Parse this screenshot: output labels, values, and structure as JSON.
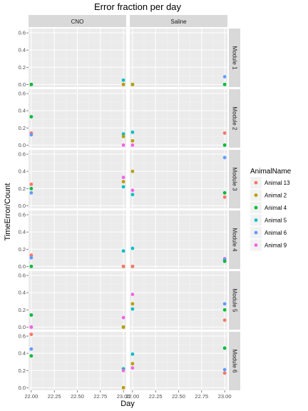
{
  "chart_data": {
    "type": "scatter",
    "title": "Error fraction per day",
    "xlabel": "Day",
    "ylabel": "TimeError/Count",
    "xlim": [
      21.97,
      23.03
    ],
    "ylim": [
      -0.03,
      0.65
    ],
    "x_ticks": [
      22.0,
      22.25,
      22.5,
      22.75,
      23.0
    ],
    "x_tick_labels": [
      "22.00",
      "22.25",
      "22.50",
      "22.75",
      "23.00"
    ],
    "y_ticks": [
      0.0,
      0.2,
      0.4,
      0.6
    ],
    "y_tick_labels": [
      "0.0",
      "0.2",
      "0.4",
      "0.6"
    ],
    "grid": true,
    "legend_position": "right",
    "legend_title": "AnimalName",
    "series": [
      {
        "name": "Animal 13",
        "color": "#F8766D"
      },
      {
        "name": "Animal 2",
        "color": "#B79F00"
      },
      {
        "name": "Animal 4",
        "color": "#00BA38"
      },
      {
        "name": "Animal 5",
        "color": "#00BFC4"
      },
      {
        "name": "Animal 6",
        "color": "#619CFF"
      },
      {
        "name": "Animal 9",
        "color": "#F564E3"
      }
    ],
    "col_facets": [
      "CNO",
      "Saline"
    ],
    "row_facets": [
      "Module 1",
      "Module 2",
      "Module 3",
      "Module 4",
      "Module 5",
      "Module 6"
    ],
    "points": [
      {
        "row": 0,
        "col": 0,
        "x": 22.0,
        "y": 0.0,
        "s": 0
      },
      {
        "row": 0,
        "col": 0,
        "x": 22.0,
        "y": 0.0,
        "s": 2
      },
      {
        "row": 0,
        "col": 0,
        "x": 23.0,
        "y": 0.05,
        "s": 3
      },
      {
        "row": 0,
        "col": 0,
        "x": 23.0,
        "y": 0.0,
        "s": 0
      },
      {
        "row": 0,
        "col": 0,
        "x": 23.0,
        "y": 0.0,
        "s": 1
      },
      {
        "row": 0,
        "col": 1,
        "x": 22.0,
        "y": 0.0,
        "s": 2
      },
      {
        "row": 0,
        "col": 1,
        "x": 22.0,
        "y": 0.0,
        "s": 1
      },
      {
        "row": 0,
        "col": 1,
        "x": 23.0,
        "y": 0.09,
        "s": 4
      },
      {
        "row": 0,
        "col": 1,
        "x": 23.0,
        "y": 0.0,
        "s": 2
      },
      {
        "row": 1,
        "col": 0,
        "x": 22.0,
        "y": 0.33,
        "s": 2
      },
      {
        "row": 1,
        "col": 0,
        "x": 22.0,
        "y": 0.14,
        "s": 0
      },
      {
        "row": 1,
        "col": 0,
        "x": 22.0,
        "y": 0.12,
        "s": 4
      },
      {
        "row": 1,
        "col": 0,
        "x": 23.0,
        "y": 0.13,
        "s": 3
      },
      {
        "row": 1,
        "col": 0,
        "x": 23.0,
        "y": 0.1,
        "s": 1
      },
      {
        "row": 1,
        "col": 0,
        "x": 23.0,
        "y": 0.0,
        "s": 5
      },
      {
        "row": 1,
        "col": 1,
        "x": 22.0,
        "y": 0.15,
        "s": 3
      },
      {
        "row": 1,
        "col": 1,
        "x": 22.0,
        "y": 0.05,
        "s": 1
      },
      {
        "row": 1,
        "col": 1,
        "x": 22.0,
        "y": 0.0,
        "s": 5
      },
      {
        "row": 1,
        "col": 1,
        "x": 23.0,
        "y": 0.14,
        "s": 0
      },
      {
        "row": 1,
        "col": 1,
        "x": 23.0,
        "y": 0.0,
        "s": 2
      },
      {
        "row": 2,
        "col": 0,
        "x": 22.0,
        "y": 0.25,
        "s": 0
      },
      {
        "row": 2,
        "col": 0,
        "x": 22.0,
        "y": 0.2,
        "s": 2
      },
      {
        "row": 2,
        "col": 0,
        "x": 22.0,
        "y": 0.15,
        "s": 4
      },
      {
        "row": 2,
        "col": 0,
        "x": 23.0,
        "y": 0.33,
        "s": 5
      },
      {
        "row": 2,
        "col": 0,
        "x": 23.0,
        "y": 0.28,
        "s": 1
      },
      {
        "row": 2,
        "col": 0,
        "x": 23.0,
        "y": 0.22,
        "s": 3
      },
      {
        "row": 2,
        "col": 1,
        "x": 22.0,
        "y": 0.4,
        "s": 1
      },
      {
        "row": 2,
        "col": 1,
        "x": 22.0,
        "y": 0.18,
        "s": 5
      },
      {
        "row": 2,
        "col": 1,
        "x": 22.0,
        "y": 0.13,
        "s": 3
      },
      {
        "row": 2,
        "col": 1,
        "x": 23.0,
        "y": 0.56,
        "s": 4
      },
      {
        "row": 2,
        "col": 1,
        "x": 23.0,
        "y": 0.15,
        "s": 2
      },
      {
        "row": 2,
        "col": 1,
        "x": 23.0,
        "y": 0.1,
        "s": 0
      },
      {
        "row": 3,
        "col": 0,
        "x": 22.0,
        "y": 0.13,
        "s": 0
      },
      {
        "row": 3,
        "col": 0,
        "x": 22.0,
        "y": 0.1,
        "s": 4
      },
      {
        "row": 3,
        "col": 0,
        "x": 22.0,
        "y": 0.0,
        "s": 2
      },
      {
        "row": 3,
        "col": 0,
        "x": 23.0,
        "y": 0.18,
        "s": 3
      },
      {
        "row": 3,
        "col": 0,
        "x": 23.0,
        "y": 0.0,
        "s": 1
      },
      {
        "row": 3,
        "col": 0,
        "x": 23.0,
        "y": 0.0,
        "s": 0
      },
      {
        "row": 3,
        "col": 1,
        "x": 22.0,
        "y": 0.21,
        "s": 3
      },
      {
        "row": 3,
        "col": 1,
        "x": 22.0,
        "y": 0.0,
        "s": 1
      },
      {
        "row": 3,
        "col": 1,
        "x": 22.0,
        "y": 0.0,
        "s": 0
      },
      {
        "row": 3,
        "col": 1,
        "x": 23.0,
        "y": 0.09,
        "s": 5
      },
      {
        "row": 3,
        "col": 1,
        "x": 23.0,
        "y": 0.08,
        "s": 4
      },
      {
        "row": 3,
        "col": 1,
        "x": 23.0,
        "y": 0.06,
        "s": 2
      },
      {
        "row": 4,
        "col": 0,
        "x": 22.0,
        "y": 0.14,
        "s": 2
      },
      {
        "row": 4,
        "col": 0,
        "x": 22.0,
        "y": 0.0,
        "s": 4
      },
      {
        "row": 4,
        "col": 0,
        "x": 22.0,
        "y": 0.0,
        "s": 5
      },
      {
        "row": 4,
        "col": 0,
        "x": 23.0,
        "y": 0.11,
        "s": 5
      },
      {
        "row": 4,
        "col": 0,
        "x": 23.0,
        "y": 0.0,
        "s": 2
      },
      {
        "row": 4,
        "col": 0,
        "x": 23.0,
        "y": 0.0,
        "s": 1
      },
      {
        "row": 4,
        "col": 1,
        "x": 22.0,
        "y": 0.38,
        "s": 5
      },
      {
        "row": 4,
        "col": 1,
        "x": 22.0,
        "y": 0.27,
        "s": 1
      },
      {
        "row": 4,
        "col": 1,
        "x": 22.0,
        "y": 0.21,
        "s": 3
      },
      {
        "row": 4,
        "col": 1,
        "x": 23.0,
        "y": 0.27,
        "s": 4
      },
      {
        "row": 4,
        "col": 1,
        "x": 23.0,
        "y": 0.2,
        "s": 2
      },
      {
        "row": 4,
        "col": 1,
        "x": 23.0,
        "y": 0.08,
        "s": 0
      },
      {
        "row": 5,
        "col": 0,
        "x": 22.0,
        "y": 0.62,
        "s": 0
      },
      {
        "row": 5,
        "col": 0,
        "x": 22.0,
        "y": 0.45,
        "s": 4
      },
      {
        "row": 5,
        "col": 0,
        "x": 22.0,
        "y": 0.37,
        "s": 2
      },
      {
        "row": 5,
        "col": 0,
        "x": 23.0,
        "y": 0.22,
        "s": 3
      },
      {
        "row": 5,
        "col": 0,
        "x": 23.0,
        "y": 0.2,
        "s": 5
      },
      {
        "row": 5,
        "col": 0,
        "x": 23.0,
        "y": 0.0,
        "s": 1
      },
      {
        "row": 5,
        "col": 1,
        "x": 22.0,
        "y": 0.39,
        "s": 3
      },
      {
        "row": 5,
        "col": 1,
        "x": 22.0,
        "y": 0.28,
        "s": 1
      },
      {
        "row": 5,
        "col": 1,
        "x": 22.0,
        "y": 0.23,
        "s": 5
      },
      {
        "row": 5,
        "col": 1,
        "x": 23.0,
        "y": 0.46,
        "s": 2
      },
      {
        "row": 5,
        "col": 1,
        "x": 23.0,
        "y": 0.21,
        "s": 4
      },
      {
        "row": 5,
        "col": 1,
        "x": 23.0,
        "y": 0.17,
        "s": 0
      }
    ]
  }
}
